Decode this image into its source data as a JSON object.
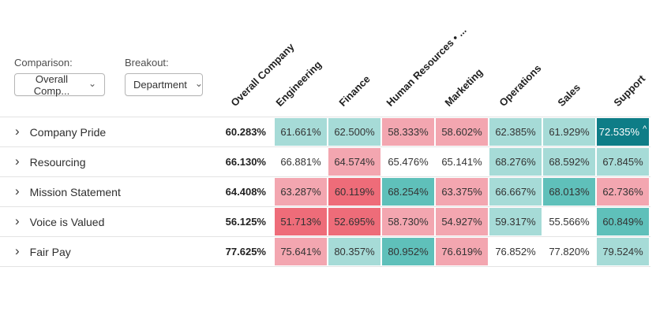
{
  "filters": {
    "comparison": {
      "label": "Comparison:",
      "value": "Overall Comp...",
      "chevron": "⌄"
    },
    "breakout": {
      "label": "Breakout:",
      "value": "Department",
      "chevron": "⌄"
    }
  },
  "icons": {
    "row_expand": "›"
  },
  "heatmap": {
    "columns": [
      "Overall Company",
      "Engineering",
      "Finance",
      "Human Resources • ...",
      "Marketing",
      "Operations",
      "Sales",
      "Support"
    ],
    "colors": {
      "teal-dark": "#0e7d87",
      "teal-mid": "#5fc0ba",
      "teal-light": "#a6dbd7",
      "pink": "#f3a6b0",
      "red": "#ee6c79",
      "none": "#ffffff"
    },
    "rows": [
      {
        "label": "Company Pride",
        "overall": "60.283%",
        "cells": [
          {
            "value": "61.661%",
            "tone": "teal-light"
          },
          {
            "value": "62.500%",
            "tone": "teal-light"
          },
          {
            "value": "58.333%",
            "tone": "pink"
          },
          {
            "value": "58.602%",
            "tone": "pink"
          },
          {
            "value": "62.385%",
            "tone": "teal-light"
          },
          {
            "value": "61.929%",
            "tone": "teal-light"
          },
          {
            "value": "72.535%",
            "tone": "teal-dark",
            "marker": "^"
          }
        ]
      },
      {
        "label": "Resourcing",
        "overall": "66.130%",
        "cells": [
          {
            "value": "66.881%",
            "tone": "none"
          },
          {
            "value": "64.574%",
            "tone": "pink"
          },
          {
            "value": "65.476%",
            "tone": "none"
          },
          {
            "value": "65.141%",
            "tone": "none"
          },
          {
            "value": "68.276%",
            "tone": "teal-light"
          },
          {
            "value": "68.592%",
            "tone": "teal-light"
          },
          {
            "value": "67.845%",
            "tone": "teal-light"
          }
        ]
      },
      {
        "label": "Mission Statement",
        "overall": "64.408%",
        "cells": [
          {
            "value": "63.287%",
            "tone": "pink"
          },
          {
            "value": "60.119%",
            "tone": "red"
          },
          {
            "value": "68.254%",
            "tone": "teal-mid"
          },
          {
            "value": "63.375%",
            "tone": "pink"
          },
          {
            "value": "66.667%",
            "tone": "teal-light"
          },
          {
            "value": "68.013%",
            "tone": "teal-mid"
          },
          {
            "value": "62.736%",
            "tone": "pink"
          }
        ]
      },
      {
        "label": "Voice is Valued",
        "overall": "56.125%",
        "cells": [
          {
            "value": "51.713%",
            "tone": "red"
          },
          {
            "value": "52.695%",
            "tone": "red"
          },
          {
            "value": "58.730%",
            "tone": "pink"
          },
          {
            "value": "54.927%",
            "tone": "pink"
          },
          {
            "value": "59.317%",
            "tone": "teal-light"
          },
          {
            "value": "55.566%",
            "tone": "none"
          },
          {
            "value": "60.849%",
            "tone": "teal-mid"
          }
        ]
      },
      {
        "label": "Fair Pay",
        "overall": "77.625%",
        "cells": [
          {
            "value": "75.641%",
            "tone": "pink"
          },
          {
            "value": "80.357%",
            "tone": "teal-light"
          },
          {
            "value": "80.952%",
            "tone": "teal-mid"
          },
          {
            "value": "76.619%",
            "tone": "pink"
          },
          {
            "value": "76.852%",
            "tone": "none"
          },
          {
            "value": "77.820%",
            "tone": "none"
          },
          {
            "value": "79.524%",
            "tone": "teal-light"
          }
        ]
      }
    ]
  }
}
